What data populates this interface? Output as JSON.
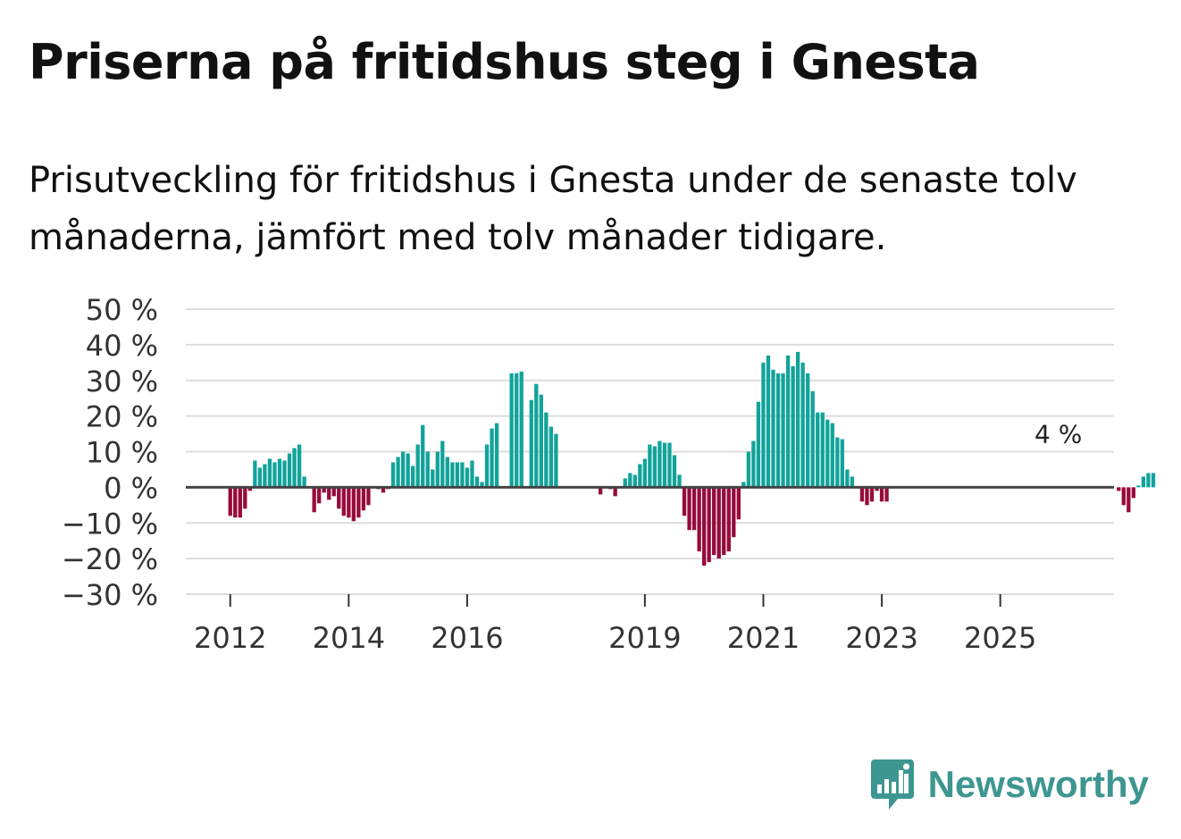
{
  "header": {
    "title": "Priserna på fritidshus steg i Gnesta",
    "subtitle": "Prisutveckling för fritidshus i Gnesta under de senaste tolv månaderna, jämfört med tolv månader tidigare."
  },
  "brand": {
    "name": "Newsworthy",
    "logo_icon": "bar-chart-icon"
  },
  "colors": {
    "positive": "#12a39a",
    "negative": "#970a3c",
    "zero_line": "#444444",
    "grid": "#dddddd",
    "label_halo": "#ffffff",
    "brand": "#3d9690"
  },
  "chart_data": {
    "type": "bar",
    "title": "Priserna på fritidshus steg i Gnesta",
    "xlabel": "",
    "ylabel": "",
    "ylim": [
      -30,
      50
    ],
    "y_ticks": [
      50,
      40,
      30,
      20,
      10,
      0,
      -10,
      -20,
      -30
    ],
    "y_tick_labels": [
      "50 %",
      "40 %",
      "30 %",
      "20 %",
      "10 %",
      "0 %",
      "−10 %",
      "−20 %",
      "−30 %"
    ],
    "x_range": [
      2011.25,
      2026.92
    ],
    "x_ticks": [
      2012,
      2014,
      2016,
      2019,
      2021,
      2023,
      2025
    ],
    "x_tick_labels": [
      "2012",
      "2014",
      "2016",
      "2019",
      "2021",
      "2023",
      "2025"
    ],
    "grid": true,
    "annotation": {
      "text": "4 %",
      "x": 2025.92,
      "y": 4
    },
    "series": [
      {
        "name": "Prisutveckling",
        "start": 2012.0,
        "step": 0.08333,
        "values": [
          -8,
          -8.5,
          -8.5,
          -6,
          -1,
          7.5,
          5.5,
          6.5,
          8,
          7,
          8,
          7.5,
          9.5,
          11,
          12,
          3,
          null,
          -7,
          -4.5,
          -1.5,
          -3.5,
          -2.5,
          -6,
          -8,
          -8.5,
          -9.5,
          -8.5,
          -6.5,
          -5,
          null,
          -0.5,
          -1.5,
          -0.5,
          7,
          8.5,
          10,
          9.5,
          6,
          12,
          17.5,
          10,
          5,
          10,
          13,
          8.5,
          7,
          7,
          7,
          5.5,
          7.5,
          3,
          1.5,
          12,
          16.5,
          18,
          null,
          null,
          32,
          32,
          32.5,
          null,
          24.5,
          29,
          26,
          21,
          17,
          15,
          null,
          null,
          null,
          null,
          null,
          null,
          null,
          null,
          -2,
          null,
          -0.5,
          -2.5,
          null,
          2.5,
          4,
          3.5,
          6.5,
          8,
          12,
          11.5,
          13,
          12.5,
          12.5,
          9,
          3.5,
          -8,
          -12,
          -12,
          -18,
          -22,
          -21,
          -19,
          -20,
          -19,
          -18,
          -14,
          -9,
          1.5,
          10,
          13,
          24,
          35,
          37,
          33,
          32,
          32,
          37,
          34,
          38,
          35,
          32,
          27,
          21,
          21,
          19,
          18,
          14,
          13.5,
          5,
          3,
          null,
          -4,
          -5,
          -4,
          -1,
          -4,
          -4,
          null,
          null,
          null,
          null,
          null,
          null,
          null,
          null,
          null,
          null,
          null,
          null,
          null,
          null,
          null,
          null,
          null,
          null,
          null,
          null,
          null,
          null,
          null,
          null,
          null,
          null,
          null,
          null,
          null,
          null,
          null,
          null,
          null,
          null,
          null,
          null,
          null,
          null,
          null,
          null,
          null,
          null,
          null,
          null,
          null,
          null,
          -1,
          -5,
          -7,
          -3,
          0.5,
          3,
          4,
          4
        ]
      }
    ]
  }
}
